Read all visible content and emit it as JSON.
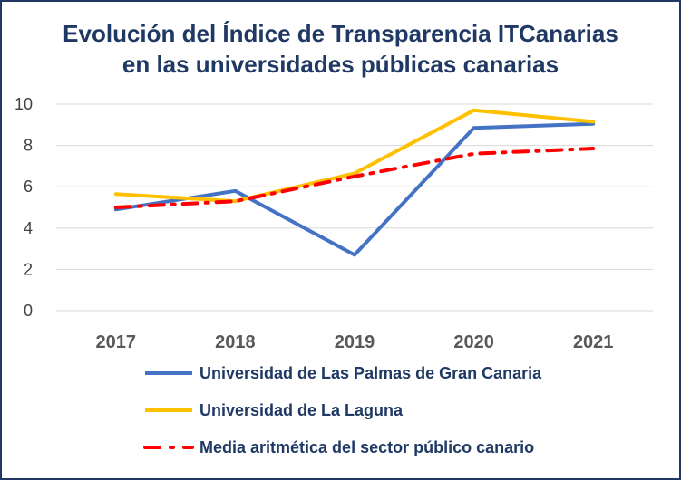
{
  "chart_data": {
    "type": "line",
    "title_line1": "Evolución del Índice de Transparencia ITCanarias",
    "title_line2": "en las universidades públicas canarias",
    "categories": [
      "2017",
      "2018",
      "2019",
      "2020",
      "2021"
    ],
    "ylim": [
      0,
      10
    ],
    "yticks": [
      "0",
      "2",
      "4",
      "6",
      "8",
      "10"
    ],
    "grid": true,
    "legend_position": "bottom",
    "series": [
      {
        "name": "Universidad de Las Palmas de Gran Canaria",
        "values": [
          4.9,
          5.8,
          2.7,
          8.85,
          9.05
        ],
        "color": "#4472C4",
        "style": "solid"
      },
      {
        "name": "Universidad de La Laguna",
        "values": [
          5.65,
          5.3,
          6.65,
          9.7,
          9.15
        ],
        "color": "#FFC000",
        "style": "solid"
      },
      {
        "name": "Media aritmética del sector público canario",
        "values": [
          5.0,
          5.3,
          6.5,
          7.6,
          7.85
        ],
        "color": "#FF0000",
        "style": "dashdot"
      }
    ]
  }
}
